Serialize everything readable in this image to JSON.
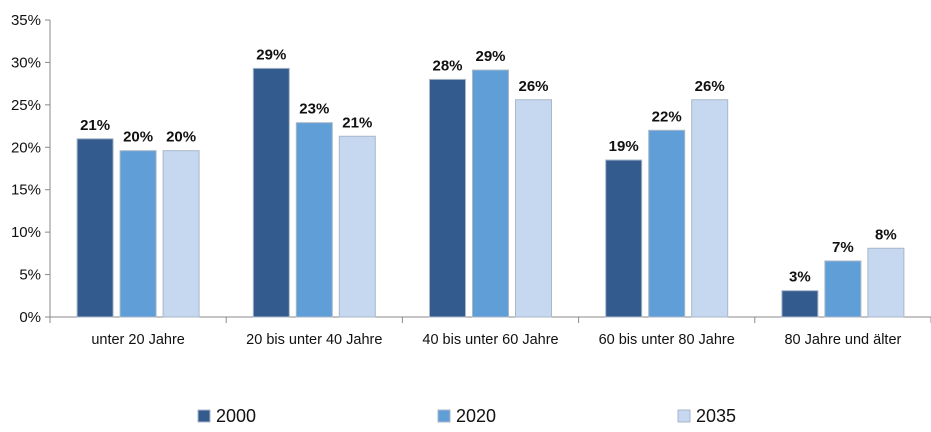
{
  "chart_data": {
    "type": "bar",
    "categories": [
      "unter 20 Jahre",
      "20 bis unter 40 Jahre",
      "40 bis unter 60 Jahre",
      "60 bis unter 80 Jahre",
      "80 Jahre und älter"
    ],
    "series": [
      {
        "name": "2000",
        "color": "#335b8e",
        "values": [
          21,
          29.3,
          28,
          18.5,
          3.1
        ],
        "labels": [
          "21%",
          "29%",
          "28%",
          "19%",
          "3%"
        ]
      },
      {
        "name": "2020",
        "color": "#5f9ed6",
        "values": [
          19.6,
          22.9,
          29.1,
          22,
          6.6
        ],
        "labels": [
          "20%",
          "23%",
          "29%",
          "22%",
          "7%"
        ]
      },
      {
        "name": "2035",
        "color": "#c6d8f0",
        "values": [
          19.6,
          21.3,
          25.6,
          25.6,
          8.1
        ],
        "labels": [
          "20%",
          "21%",
          "26%",
          "26%",
          "8%"
        ]
      }
    ],
    "y_ticks": [
      "0%",
      "5%",
      "10%",
      "15%",
      "20%",
      "25%",
      "30%",
      "35%"
    ],
    "ylim": [
      0,
      35
    ],
    "ylabel": "",
    "xlabel": "",
    "title": "",
    "grid": false,
    "legend_position": "bottom"
  }
}
